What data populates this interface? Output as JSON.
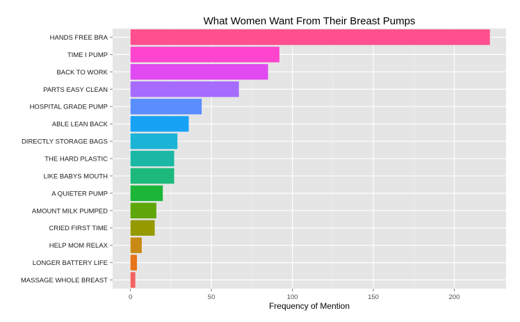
{
  "chart_data": {
    "type": "bar",
    "orientation": "horizontal",
    "title": "What Women Want From Their Breast Pumps",
    "xlabel": "Frequency of Mention",
    "ylabel": "",
    "xlim": [
      -11,
      232
    ],
    "xticks": [
      0,
      50,
      100,
      150,
      200
    ],
    "grid": true,
    "legend": "none",
    "panel_background": "#E5E5E5",
    "grid_color": "#FFFFFF",
    "categories": [
      "HANDS FREE BRA",
      "TIME I PUMP",
      "BACK TO WORK",
      "PARTS EASY CLEAN",
      "HOSPITAL GRADE PUMP",
      "ABLE LEAN BACK",
      "DIRECTLY STORAGE BAGS",
      "THE HARD PLASTIC",
      "LIKE BABYS MOUTH",
      "A QUIETER PUMP",
      "AMOUNT MILK PUMPED",
      "CRIED FIRST TIME",
      "HELP MOM RELAX",
      "LONGER BATTERY LIFE",
      "MASSAGE WHOLE BREAST"
    ],
    "values": [
      222,
      92,
      85,
      67,
      44,
      36,
      29,
      27,
      27,
      20,
      16,
      15,
      7,
      4,
      3
    ],
    "colors": [
      "#FF4F8E",
      "#FF45CE",
      "#E04AF0",
      "#A66BFF",
      "#5A8EFF",
      "#17A2F5",
      "#1BB3D6",
      "#1BB8A6",
      "#1DB97C",
      "#1DB539",
      "#5FA60A",
      "#949A00",
      "#C88A14",
      "#E6741A",
      "#F2625E"
    ]
  }
}
